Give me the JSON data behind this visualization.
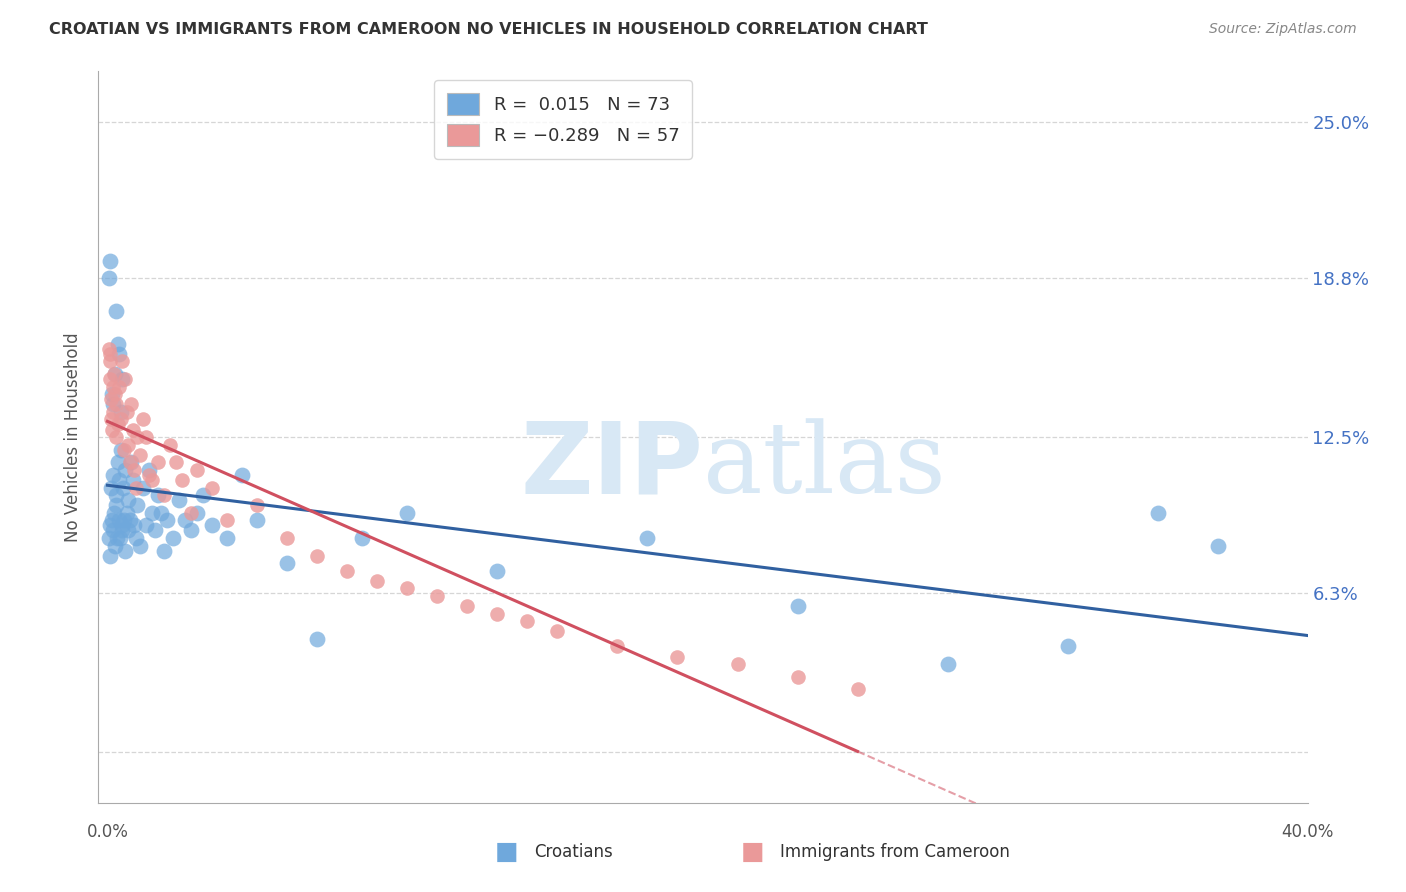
{
  "title": "CROATIAN VS IMMIGRANTS FROM CAMEROON NO VEHICLES IN HOUSEHOLD CORRELATION CHART",
  "source": "Source: ZipAtlas.com",
  "ylabel": "No Vehicles in Household",
  "r_croatian": 0.015,
  "n_croatian": 73,
  "r_cameroon": -0.289,
  "n_cameroon": 57,
  "blue_color": "#6fa8dc",
  "pink_color": "#ea9999",
  "blue_line_color": "#3060a0",
  "pink_line_color": "#d05060",
  "watermark_color": "#d8e8f5",
  "background_color": "#ffffff",
  "grid_color": "#cccccc",
  "ytick_vals": [
    0.0,
    6.3,
    12.5,
    18.8,
    25.0
  ],
  "ytick_color": "#4472c4",
  "xlim": [
    0.0,
    40.0
  ],
  "ylim": [
    -2.0,
    27.0
  ],
  "x_cr": [
    0.05,
    0.08,
    0.1,
    0.12,
    0.15,
    0.18,
    0.2,
    0.22,
    0.25,
    0.28,
    0.3,
    0.32,
    0.35,
    0.38,
    0.4,
    0.42,
    0.45,
    0.48,
    0.5,
    0.52,
    0.55,
    0.58,
    0.6,
    0.65,
    0.68,
    0.7,
    0.75,
    0.8,
    0.85,
    0.9,
    0.95,
    1.0,
    1.1,
    1.2,
    1.3,
    1.4,
    1.5,
    1.6,
    1.7,
    1.8,
    1.9,
    2.0,
    2.2,
    2.4,
    2.6,
    2.8,
    3.0,
    3.2,
    3.5,
    4.0,
    4.5,
    5.0,
    6.0,
    7.0,
    8.5,
    10.0,
    13.0,
    18.0,
    23.0,
    28.0,
    32.0,
    35.0,
    37.0,
    0.06,
    0.09,
    0.14,
    0.19,
    0.24,
    0.29,
    0.34,
    0.39,
    0.44,
    0.49
  ],
  "y_cr": [
    8.5,
    9.0,
    7.8,
    10.5,
    9.2,
    8.8,
    11.0,
    9.5,
    8.2,
    10.2,
    9.8,
    8.5,
    11.5,
    10.8,
    9.2,
    8.5,
    12.0,
    9.0,
    8.8,
    10.5,
    9.2,
    8.0,
    11.2,
    9.5,
    8.8,
    10.0,
    9.2,
    11.5,
    10.8,
    9.0,
    8.5,
    9.8,
    8.2,
    10.5,
    9.0,
    11.2,
    9.5,
    8.8,
    10.2,
    9.5,
    8.0,
    9.2,
    8.5,
    10.0,
    9.2,
    8.8,
    9.5,
    10.2,
    9.0,
    8.5,
    11.0,
    9.2,
    7.5,
    4.5,
    8.5,
    9.5,
    7.2,
    8.5,
    5.8,
    3.5,
    4.2,
    9.5,
    8.2,
    18.8,
    19.5,
    14.2,
    13.8,
    15.0,
    17.5,
    16.2,
    15.8,
    13.5,
    14.8
  ],
  "x_ca": [
    0.05,
    0.08,
    0.1,
    0.12,
    0.15,
    0.18,
    0.2,
    0.22,
    0.25,
    0.28,
    0.3,
    0.35,
    0.4,
    0.45,
    0.5,
    0.55,
    0.6,
    0.65,
    0.7,
    0.75,
    0.8,
    0.85,
    0.9,
    0.95,
    1.0,
    1.1,
    1.2,
    1.3,
    1.4,
    1.5,
    1.7,
    1.9,
    2.1,
    2.3,
    2.5,
    2.8,
    3.0,
    3.5,
    4.0,
    5.0,
    6.0,
    7.0,
    8.0,
    9.0,
    10.0,
    11.0,
    12.0,
    13.0,
    14.0,
    15.0,
    17.0,
    19.0,
    21.0,
    23.0,
    25.0,
    0.07,
    0.13
  ],
  "y_ca": [
    16.0,
    15.5,
    14.8,
    13.2,
    12.8,
    14.5,
    13.5,
    15.0,
    14.2,
    13.8,
    12.5,
    13.0,
    14.5,
    13.2,
    15.5,
    12.0,
    14.8,
    13.5,
    12.2,
    11.5,
    13.8,
    12.8,
    11.2,
    10.5,
    12.5,
    11.8,
    13.2,
    12.5,
    11.0,
    10.8,
    11.5,
    10.2,
    12.2,
    11.5,
    10.8,
    9.5,
    11.2,
    10.5,
    9.2,
    9.8,
    8.5,
    7.8,
    7.2,
    6.8,
    6.5,
    6.2,
    5.8,
    5.5,
    5.2,
    4.8,
    4.2,
    3.8,
    3.5,
    3.0,
    2.5,
    15.8,
    14.0
  ]
}
